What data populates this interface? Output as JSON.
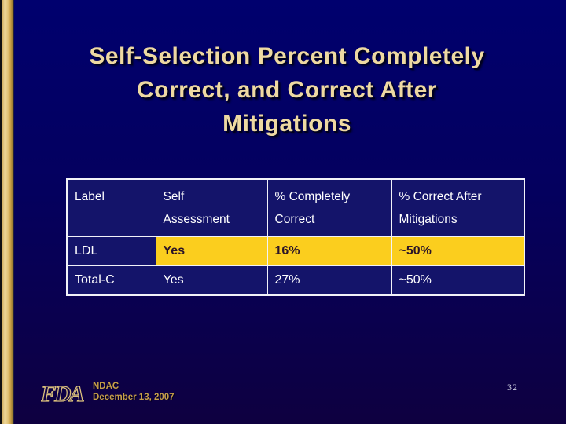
{
  "slide": {
    "title_lines": [
      "Self-Selection Percent Completely",
      "Correct, and Correct After",
      "Mitigations"
    ],
    "page_number": "32"
  },
  "table": {
    "headers": [
      {
        "line1": "Label",
        "line2": ""
      },
      {
        "line1": "Self",
        "line2": "Assessment"
      },
      {
        "line1": "% Completely",
        "line2": "Correct"
      },
      {
        "line1": "% Correct After",
        "line2": "Mitigations"
      }
    ],
    "rows": [
      {
        "label": "LDL",
        "self_assessment": "Yes",
        "pct_completely_correct": "16%",
        "pct_correct_after_mitigations": "~50%",
        "highlighted": true
      },
      {
        "label": "Total-C",
        "self_assessment": "Yes",
        "pct_completely_correct": "27%",
        "pct_correct_after_mitigations": "~50%",
        "highlighted": false
      }
    ]
  },
  "footer": {
    "logo": "FDA",
    "org": "NDAC",
    "date": "December 13, 2007"
  },
  "colors": {
    "background_top": "#00006e",
    "background_bottom": "#0e0040",
    "cell_navy": "#14146a",
    "highlight_gold": "#fbce1e",
    "highlight_text": "#2b1528",
    "title_tan": "#eed9a2",
    "footer_gold": "#c79f4a",
    "stripe_gold": "#e7cb82",
    "table_border": "#f2f2f8",
    "page_number_color": "#cfcfe2"
  }
}
